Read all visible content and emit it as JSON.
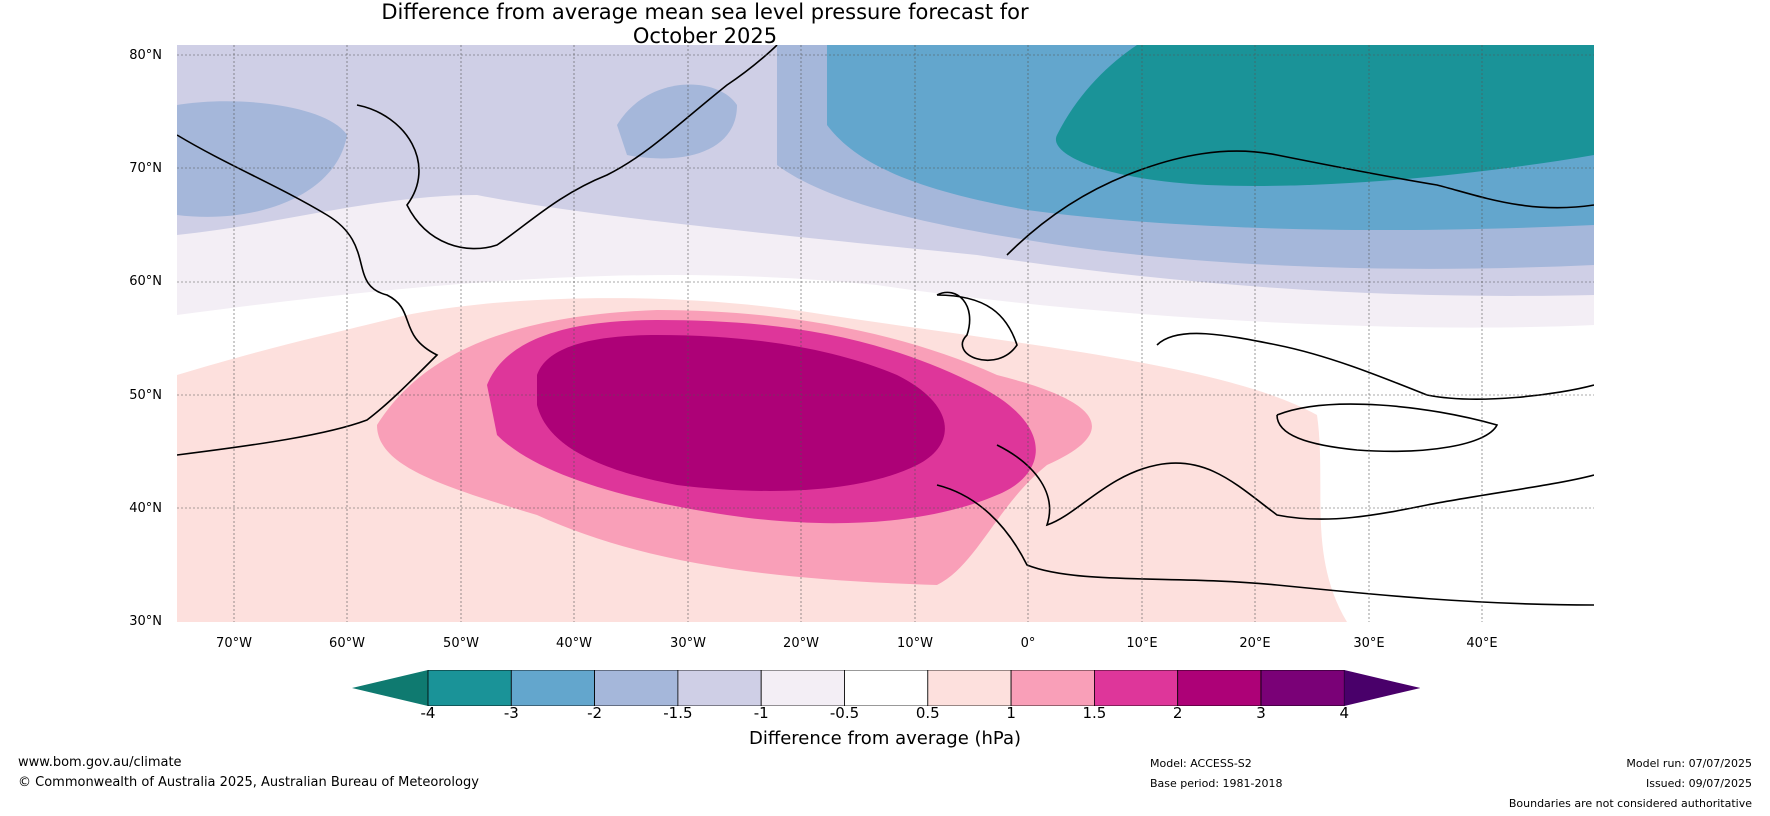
{
  "title_line1": "Difference from average mean sea level pressure forecast for",
  "title_line2": "October 2025",
  "lat_labels": [
    "80°N",
    "70°N",
    "60°N",
    "50°N",
    "40°N",
    "30°N"
  ],
  "lon_labels": [
    "70°W",
    "60°W",
    "50°W",
    "40°W",
    "30°W",
    "20°W",
    "10°W",
    "0°",
    "10°E",
    "20°E",
    "30°E",
    "40°E"
  ],
  "colorbar": {
    "ticks": [
      "-4",
      "-3",
      "-2",
      "-1.5",
      "-1",
      "-0.5",
      "0.5",
      "1",
      "1.5",
      "2",
      "3",
      "4"
    ],
    "colors": [
      "#0f7a70",
      "#1a9398",
      "#63a6cd",
      "#a5b7da",
      "#cfcfe6",
      "#f3eef5",
      "#ffffff",
      "#fde0dd",
      "#f99fb8",
      "#de369a",
      "#ad0177",
      "#7a0177",
      "#49006a"
    ],
    "label": "Difference from average (hPa)"
  },
  "footer": {
    "url": "www.bom.gov.au/climate",
    "copyright": "© Commonwealth of Australia 2025, Australian Bureau of Meteorology",
    "model": "Model: ACCESS-S2",
    "base_period": "Base period: 1981-2018",
    "model_run": "Model run: 07/07/2025",
    "issued": "Issued: 09/07/2025",
    "disclaimer": "Boundaries are not considered authoritative"
  }
}
